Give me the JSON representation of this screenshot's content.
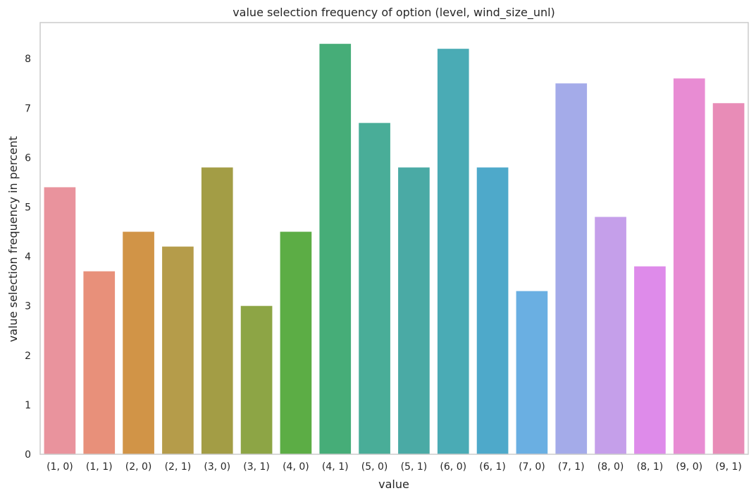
{
  "chart_data": {
    "type": "bar",
    "title": "value selection frequency of option (level, wind_size_unl)",
    "xlabel": "value",
    "ylabel": "value selection frequency in percent",
    "categories": [
      "(1, 0)",
      "(1, 1)",
      "(2, 0)",
      "(2, 1)",
      "(3, 0)",
      "(3, 1)",
      "(4, 0)",
      "(4, 1)",
      "(5, 0)",
      "(5, 1)",
      "(6, 0)",
      "(6, 1)",
      "(7, 0)",
      "(7, 1)",
      "(8, 0)",
      "(8, 1)",
      "(9, 0)",
      "(9, 1)"
    ],
    "values": [
      5.4,
      3.7,
      4.5,
      4.2,
      5.8,
      3.0,
      4.5,
      8.3,
      6.7,
      5.8,
      8.2,
      5.8,
      3.3,
      7.5,
      4.8,
      3.8,
      7.6,
      7.1
    ],
    "colors": [
      "#e9939d",
      "#e8907a",
      "#d19447",
      "#b59c4a",
      "#a39d45",
      "#8da545",
      "#5cad45",
      "#46ad78",
      "#49ad98",
      "#4aaaa5",
      "#4aabb5",
      "#4ea9ca",
      "#6aafe2",
      "#a4abe9",
      "#c59fea",
      "#de8bea",
      "#e88cd3",
      "#e88cb7"
    ],
    "yticks": [
      "0",
      "1",
      "2",
      "3",
      "4",
      "5",
      "6",
      "7",
      "8"
    ],
    "ylim": [
      0,
      8.73
    ],
    "grid": false,
    "legend": false
  }
}
